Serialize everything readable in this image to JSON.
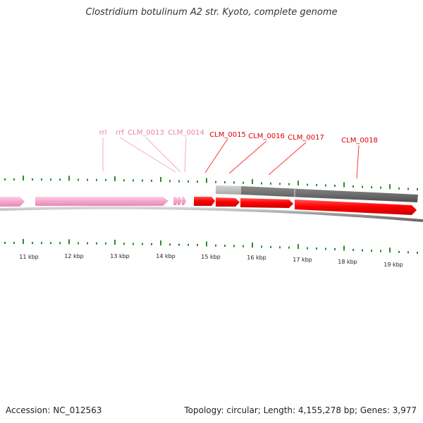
{
  "title": "Clostridium botulinum A2 str. Kyoto, complete genome",
  "footer": {
    "accession": "Accession: NC_012563",
    "summary": "Topology: circular; Length: 4,155,278 bp; Genes: 3,977"
  },
  "colors": {
    "rna_gene": "#f7a8cc",
    "rna_label": "#e87fb0",
    "cds_gene": "#ff0000",
    "cds_label": "#dd0000",
    "gc_dark": "#707070",
    "gc_light": "#c0c0c0",
    "tick": "#2a8a2a",
    "backbone": "#8a8a8a"
  },
  "scale": {
    "unit": "kbp",
    "labels": [
      "11 kbp",
      "12 kbp",
      "13 kbp",
      "14 kbp",
      "15 kbp",
      "16 kbp",
      "17 kbp",
      "18 kbp",
      "19 kbp"
    ]
  },
  "gene_labels": [
    {
      "text": "rrl",
      "type": "rna"
    },
    {
      "text": "rrf",
      "type": "rna"
    },
    {
      "text": "CLM_0013",
      "type": "rna"
    },
    {
      "text": "CLM_0014",
      "type": "rna"
    },
    {
      "text": "CLM_0015",
      "type": "cds"
    },
    {
      "text": "CLM_0016",
      "type": "cds"
    },
    {
      "text": "CLM_0017",
      "type": "cds"
    },
    {
      "text": "CLM_0018",
      "type": "cds"
    }
  ]
}
